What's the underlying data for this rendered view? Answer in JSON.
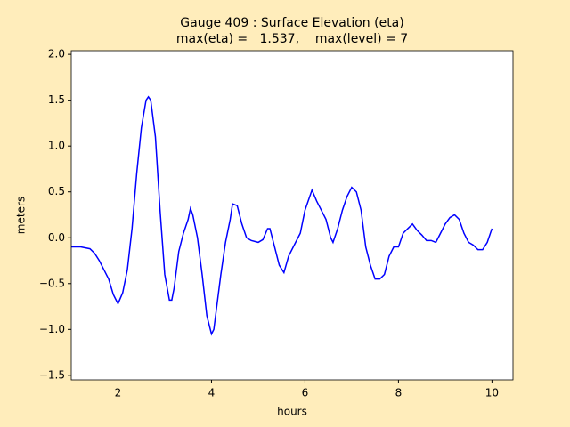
{
  "chart_data": {
    "type": "line",
    "title": "Gauge 409 : Surface Elevation (eta)",
    "subtitle": "max(eta) =   1.537,    max(level) = 7",
    "x_label": "hours",
    "y_label": "meters",
    "xlim": [
      1.0,
      10.45
    ],
    "ylim": [
      -1.55,
      2.04
    ],
    "xticks": [
      2,
      4,
      6,
      8,
      10
    ],
    "yticks": [
      {
        "value": -1.5,
        "label": "−1.5"
      },
      {
        "value": -1.0,
        "label": "−1.0"
      },
      {
        "value": -0.5,
        "label": "−0.5"
      },
      {
        "value": 0,
        "label": "0.0"
      },
      {
        "value": 0.5,
        "label": "0.5"
      },
      {
        "value": 1.0,
        "label": "1.0"
      },
      {
        "value": 1.5,
        "label": "1.5"
      },
      {
        "value": 2.0,
        "label": "2.0"
      }
    ],
    "grid": false,
    "x": [
      1.0,
      1.2,
      1.4,
      1.5,
      1.6,
      1.7,
      1.8,
      1.9,
      2.0,
      2.1,
      2.2,
      2.3,
      2.4,
      2.5,
      2.6,
      2.65,
      2.7,
      2.8,
      2.9,
      3.0,
      3.1,
      3.15,
      3.2,
      3.3,
      3.4,
      3.5,
      3.55,
      3.6,
      3.7,
      3.8,
      3.9,
      4.0,
      4.05,
      4.1,
      4.2,
      4.3,
      4.4,
      4.45,
      4.55,
      4.65,
      4.75,
      4.85,
      5.0,
      5.1,
      5.2,
      5.25,
      5.35,
      5.45,
      5.55,
      5.65,
      5.8,
      5.9,
      6.0,
      6.15,
      6.25,
      6.35,
      6.45,
      6.55,
      6.6,
      6.7,
      6.8,
      6.9,
      7.0,
      7.1,
      7.2,
      7.3,
      7.4,
      7.5,
      7.6,
      7.7,
      7.8,
      7.9,
      8.0,
      8.1,
      8.2,
      8.3,
      8.4,
      8.5,
      8.6,
      8.7,
      8.8,
      8.9,
      9.0,
      9.1,
      9.2,
      9.3,
      9.4,
      9.5,
      9.6,
      9.7,
      9.8,
      9.9,
      10.0
    ],
    "series": [
      {
        "color": "#0000ff",
        "values": [
          -0.1,
          -0.1,
          -0.12,
          -0.17,
          -0.25,
          -0.35,
          -0.45,
          -0.62,
          -0.72,
          -0.6,
          -0.35,
          0.1,
          0.7,
          1.2,
          1.5,
          1.537,
          1.5,
          1.1,
          0.3,
          -0.4,
          -0.68,
          -0.68,
          -0.55,
          -0.15,
          0.05,
          0.2,
          0.32,
          0.25,
          0.0,
          -0.4,
          -0.85,
          -1.05,
          -1.0,
          -0.8,
          -0.4,
          -0.05,
          0.2,
          0.37,
          0.35,
          0.15,
          0.0,
          -0.03,
          -0.05,
          -0.02,
          0.1,
          0.1,
          -0.1,
          -0.3,
          -0.38,
          -0.2,
          -0.05,
          0.05,
          0.3,
          0.52,
          0.4,
          0.3,
          0.2,
          0.0,
          -0.05,
          0.1,
          0.3,
          0.45,
          0.55,
          0.5,
          0.3,
          -0.1,
          -0.3,
          -0.45,
          -0.45,
          -0.4,
          -0.2,
          -0.1,
          -0.1,
          0.05,
          0.1,
          0.15,
          0.08,
          0.03,
          -0.03,
          -0.03,
          -0.05,
          0.05,
          0.15,
          0.22,
          0.25,
          0.2,
          0.05,
          -0.05,
          -0.08,
          -0.13,
          -0.13,
          -0.05,
          0.1
        ]
      }
    ]
  }
}
